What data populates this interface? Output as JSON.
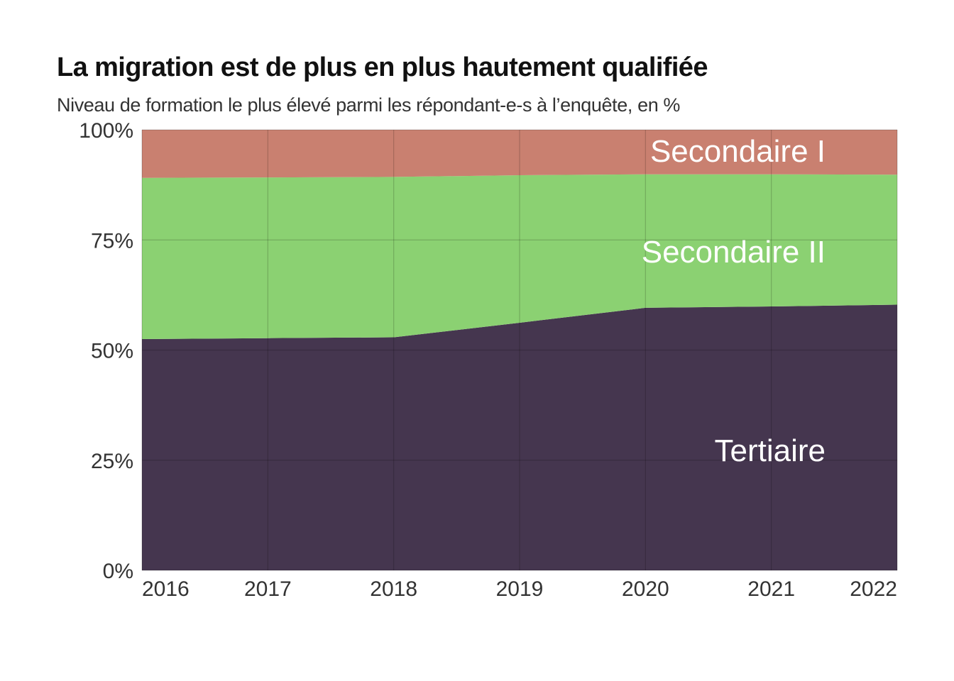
{
  "title": "La migration est de plus en plus hautement qualifiée",
  "subtitle": "Niveau de formation le plus élevé parmi les répondant-e-s à l’enquête, en %",
  "chart_data": {
    "type": "area",
    "stacked": true,
    "x": [
      2016,
      2017,
      2018,
      2019,
      2020,
      2021,
      2022
    ],
    "x_tick_labels": [
      "2016",
      "2017",
      "2018",
      "2019",
      "2020",
      "2021",
      "2022"
    ],
    "y_tick_labels": [
      "0%",
      "25%",
      "50%",
      "75%",
      "100%"
    ],
    "y_ticks": [
      0,
      25,
      50,
      75,
      100
    ],
    "ylim": [
      0,
      100
    ],
    "grid": true,
    "legend": "none (direct labels in areas)",
    "series": [
      {
        "name": "Tertiaire",
        "color": "#45364f",
        "values": [
          52.5,
          52.7,
          52.9,
          56.2,
          59.6,
          59.9,
          60.3
        ]
      },
      {
        "name": "Secondaire II",
        "color": "#8bd172",
        "values": [
          36.6,
          36.5,
          36.4,
          33.5,
          30.3,
          30.0,
          29.5
        ]
      },
      {
        "name": "Secondaire I",
        "color": "#c98070",
        "values": [
          10.9,
          10.8,
          10.7,
          10.3,
          10.1,
          10.1,
          10.2
        ]
      }
    ]
  }
}
